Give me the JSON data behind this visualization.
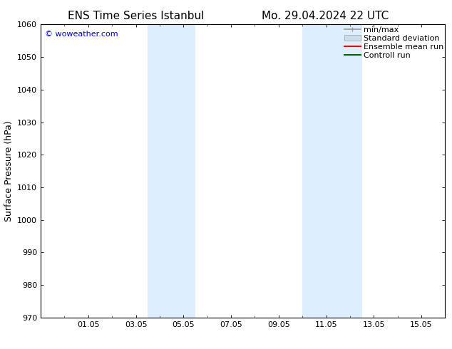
{
  "title_left": "ENS Time Series Istanbul",
  "title_right": "Mo. 29.04.2024 22 UTC",
  "ylabel": "Surface Pressure (hPa)",
  "ylim": [
    970,
    1060
  ],
  "yticks": [
    970,
    980,
    990,
    1000,
    1010,
    1020,
    1030,
    1040,
    1050,
    1060
  ],
  "xtick_labels": [
    "01.05",
    "03.05",
    "05.05",
    "07.05",
    "09.05",
    "11.05",
    "13.05",
    "15.05"
  ],
  "xtick_positions": [
    2.0,
    4.0,
    6.0,
    8.0,
    10.0,
    12.0,
    14.0,
    16.0
  ],
  "xlim": [
    0.0,
    17.0
  ],
  "shaded_bands": [
    {
      "x_start": 4.5,
      "x_end": 6.5
    },
    {
      "x_start": 11.0,
      "x_end": 13.5
    }
  ],
  "shaded_color": "#ddeeff",
  "background_color": "#ffffff",
  "watermark": "© woweather.com",
  "watermark_color": "#0000cc",
  "legend_items": [
    {
      "label": "min/max",
      "color": "#999999",
      "style": "hline"
    },
    {
      "label": "Standard deviation",
      "color": "#ccdded",
      "style": "box"
    },
    {
      "label": "Ensemble mean run",
      "color": "#ff0000",
      "style": "line"
    },
    {
      "label": "Controll run",
      "color": "#006600",
      "style": "line"
    }
  ],
  "title_fontsize": 11,
  "axis_label_fontsize": 9,
  "tick_fontsize": 8,
  "legend_fontsize": 8,
  "watermark_fontsize": 8
}
